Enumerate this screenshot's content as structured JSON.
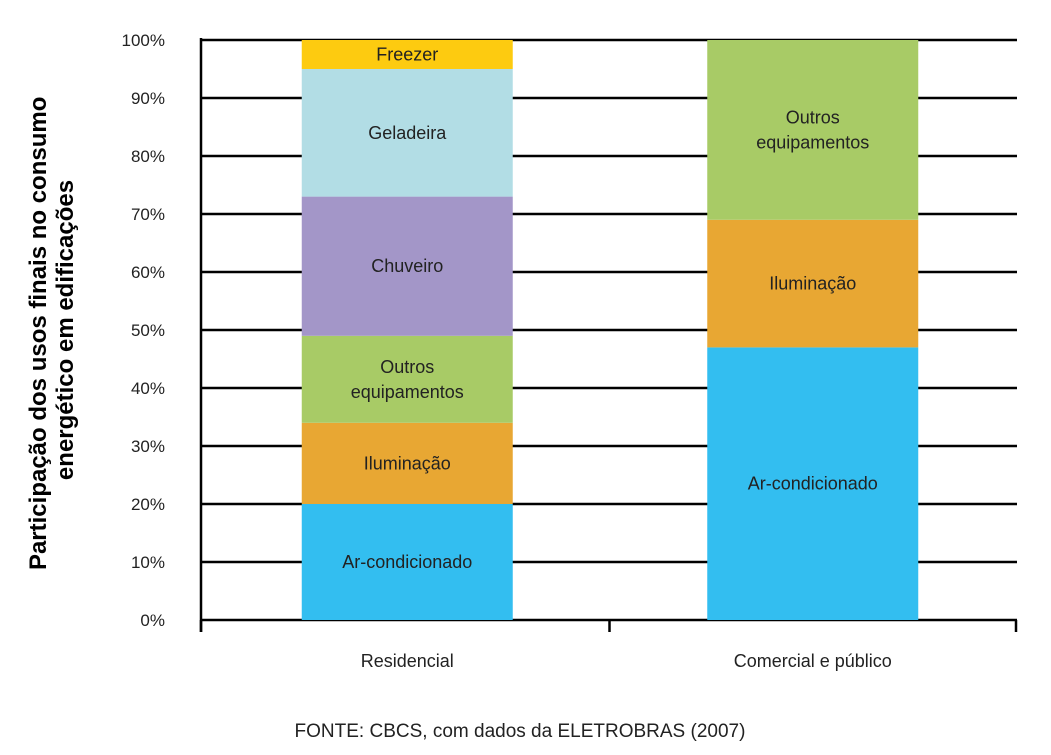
{
  "chart_data": {
    "type": "bar",
    "stacked": true,
    "title": "",
    "xlabel": "",
    "ylabel": [
      "Participação dos usos finais no consumo",
      "energético em edificações"
    ],
    "ylim": [
      0,
      100
    ],
    "yticks": [
      "0%",
      "10%",
      "20%",
      "30%",
      "40%",
      "50%",
      "60%",
      "70%",
      "80%",
      "90%",
      "100%"
    ],
    "grid": true,
    "categories": [
      "Residencial",
      "Comercial e público"
    ],
    "bars": [
      {
        "category": "Residencial",
        "segments": [
          {
            "label": [
              "Ar-condicionado"
            ],
            "value": 20,
            "color": "#33bef0"
          },
          {
            "label": [
              "Iluminação"
            ],
            "value": 14,
            "color": "#e8a733"
          },
          {
            "label": [
              "Outros",
              "equipamentos"
            ],
            "value": 15,
            "color": "#a8cb66"
          },
          {
            "label": [
              "Chuveiro"
            ],
            "value": 24,
            "color": "#a396c8"
          },
          {
            "label": [
              "Geladeira"
            ],
            "value": 22,
            "color": "#b2dde5"
          },
          {
            "label": [
              "Freezer"
            ],
            "value": 5,
            "color": "#fdcb10"
          }
        ]
      },
      {
        "category": "Comercial e público",
        "segments": [
          {
            "label": [
              "Ar-condicionado"
            ],
            "value": 47,
            "color": "#33bef0"
          },
          {
            "label": [
              "Iluminação"
            ],
            "value": 22,
            "color": "#e8a733"
          },
          {
            "label": [
              "Outros",
              "equipamentos"
            ],
            "value": 31,
            "color": "#a8cb66"
          }
        ]
      }
    ],
    "source": "FONTE: CBCS, com dados da ELETROBRAS (2007)"
  }
}
